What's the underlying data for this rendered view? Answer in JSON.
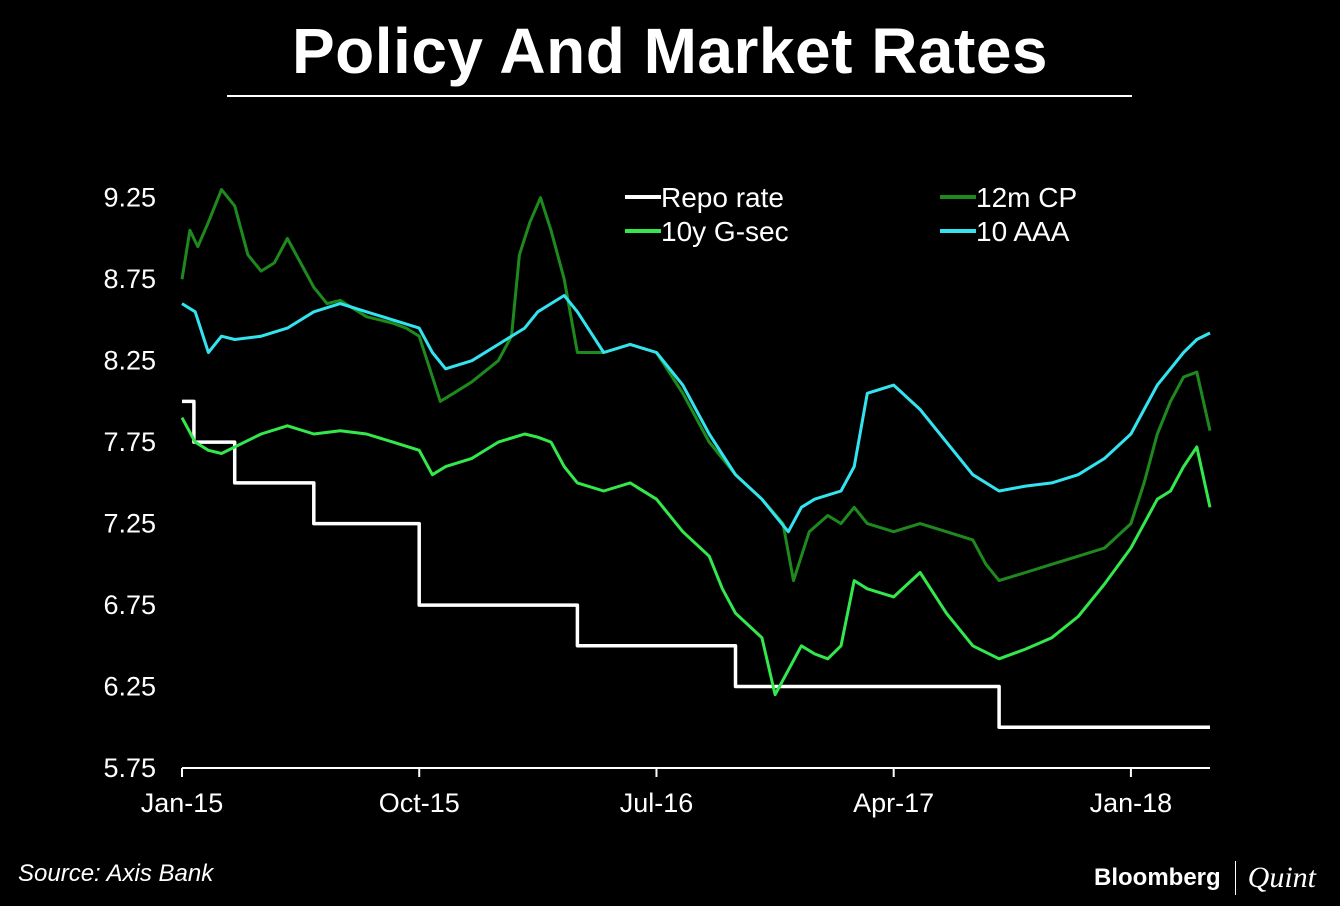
{
  "header": {
    "title": "Policy And Market Rates"
  },
  "footer": {
    "source": "Source: Axis Bank",
    "brand_primary": "Bloomberg",
    "brand_secondary": "Quint"
  },
  "chart_data": {
    "type": "line",
    "title": "Policy And Market Rates",
    "xlabel": "",
    "ylabel": "",
    "xlim": [
      0,
      39
    ],
    "ylim": [
      5.75,
      9.5
    ],
    "yticks": [
      5.75,
      6.25,
      6.75,
      7.25,
      7.75,
      8.25,
      8.75,
      9.25
    ],
    "ytick_labels": [
      "5.75",
      "6.25",
      "6.75",
      "7.25",
      "7.75",
      "8.25",
      "8.75",
      "9.25"
    ],
    "xticks": [
      0,
      9,
      18,
      27,
      36
    ],
    "xtick_labels": [
      "Jan-15",
      "Oct-15",
      "Jul-16",
      "Apr-17",
      "Jan-18"
    ],
    "legend": {
      "placement": "top-right",
      "columns": 2
    },
    "series": [
      {
        "name": "Repo rate",
        "color": "#ffffff",
        "step": true,
        "x": [
          0,
          0.45,
          2,
          5,
          9,
          15,
          21,
          31,
          39
        ],
        "y": [
          8.0,
          7.75,
          7.5,
          7.25,
          6.75,
          6.5,
          6.25,
          6.0,
          6.0
        ]
      },
      {
        "name": "12m CP",
        "color": "#1e8a1e",
        "x": [
          0,
          0.3,
          0.6,
          1.0,
          1.5,
          2.0,
          2.5,
          3.0,
          3.5,
          4.0,
          4.5,
          5.0,
          5.5,
          6.0,
          7.0,
          8.0,
          8.5,
          9.0,
          9.4,
          9.8,
          10.3,
          11.0,
          12.0,
          12.5,
          12.8,
          13.2,
          13.6,
          14.0,
          14.5,
          15.0,
          16.0,
          17.0,
          18.0,
          19.0,
          20.0,
          21.0,
          22.0,
          22.8,
          23.2,
          23.8,
          24.5,
          25.0,
          25.5,
          26.0,
          27.0,
          28.0,
          29.0,
          30.0,
          30.5,
          31.0,
          32.0,
          33.0,
          34.0,
          35.0,
          36.0,
          36.5,
          37.0,
          37.5,
          38.0,
          38.5,
          39.0
        ],
        "y": [
          8.75,
          9.05,
          8.95,
          9.1,
          9.3,
          9.2,
          8.9,
          8.8,
          8.85,
          9.0,
          8.85,
          8.7,
          8.6,
          8.62,
          8.52,
          8.48,
          8.45,
          8.4,
          8.2,
          8.0,
          8.05,
          8.12,
          8.25,
          8.4,
          8.9,
          9.1,
          9.25,
          9.05,
          8.75,
          8.3,
          8.3,
          8.35,
          8.3,
          8.05,
          7.75,
          7.55,
          7.4,
          7.25,
          6.9,
          7.2,
          7.3,
          7.25,
          7.35,
          7.25,
          7.2,
          7.25,
          7.2,
          7.15,
          7.0,
          6.9,
          6.95,
          7.0,
          7.05,
          7.1,
          7.25,
          7.5,
          7.8,
          8.0,
          8.15,
          8.18,
          7.82
        ]
      },
      {
        "name": "10y G-sec",
        "color": "#33e84d",
        "x": [
          0,
          0.5,
          1.0,
          1.5,
          2.0,
          3.0,
          4.0,
          5.0,
          6.0,
          7.0,
          8.0,
          9.0,
          9.5,
          10.0,
          11.0,
          12.0,
          13.0,
          13.5,
          14.0,
          14.5,
          15.0,
          16.0,
          17.0,
          18.0,
          19.0,
          20.0,
          20.5,
          21.0,
          22.0,
          22.5,
          23.0,
          23.5,
          24.0,
          24.5,
          25.0,
          25.5,
          26.0,
          27.0,
          28.0,
          29.0,
          30.0,
          31.0,
          32.0,
          33.0,
          34.0,
          35.0,
          36.0,
          36.5,
          37.0,
          37.5,
          38.0,
          38.5,
          39.0
        ],
        "y": [
          7.9,
          7.75,
          7.7,
          7.68,
          7.72,
          7.8,
          7.85,
          7.8,
          7.82,
          7.8,
          7.75,
          7.7,
          7.55,
          7.6,
          7.65,
          7.75,
          7.8,
          7.78,
          7.75,
          7.6,
          7.5,
          7.45,
          7.5,
          7.4,
          7.2,
          7.05,
          6.85,
          6.7,
          6.55,
          6.2,
          6.35,
          6.5,
          6.45,
          6.42,
          6.5,
          6.9,
          6.85,
          6.8,
          6.95,
          6.7,
          6.5,
          6.42,
          6.48,
          6.55,
          6.68,
          6.88,
          7.1,
          7.25,
          7.4,
          7.45,
          7.6,
          7.72,
          7.35
        ]
      },
      {
        "name": "10 AAA",
        "color": "#33e4f0",
        "x": [
          0,
          0.5,
          1.0,
          1.5,
          2.0,
          3.0,
          4.0,
          5.0,
          6.0,
          7.0,
          8.0,
          9.0,
          9.5,
          10.0,
          11.0,
          12.0,
          13.0,
          13.5,
          14.0,
          14.5,
          15.0,
          16.0,
          17.0,
          18.0,
          19.0,
          20.0,
          21.0,
          22.0,
          22.5,
          23.0,
          23.5,
          24.0,
          25.0,
          25.5,
          26.0,
          27.0,
          28.0,
          29.0,
          30.0,
          31.0,
          32.0,
          33.0,
          34.0,
          35.0,
          36.0,
          36.5,
          37.0,
          37.5,
          38.0,
          38.5,
          39.0
        ],
        "y": [
          8.6,
          8.55,
          8.3,
          8.4,
          8.38,
          8.4,
          8.45,
          8.55,
          8.6,
          8.55,
          8.5,
          8.45,
          8.3,
          8.2,
          8.25,
          8.35,
          8.45,
          8.55,
          8.6,
          8.65,
          8.55,
          8.3,
          8.35,
          8.3,
          8.1,
          7.8,
          7.55,
          7.4,
          7.3,
          7.2,
          7.35,
          7.4,
          7.45,
          7.6,
          8.05,
          8.1,
          7.95,
          7.75,
          7.55,
          7.45,
          7.48,
          7.5,
          7.55,
          7.65,
          7.8,
          7.95,
          8.1,
          8.2,
          8.3,
          8.38,
          8.42
        ]
      }
    ]
  }
}
